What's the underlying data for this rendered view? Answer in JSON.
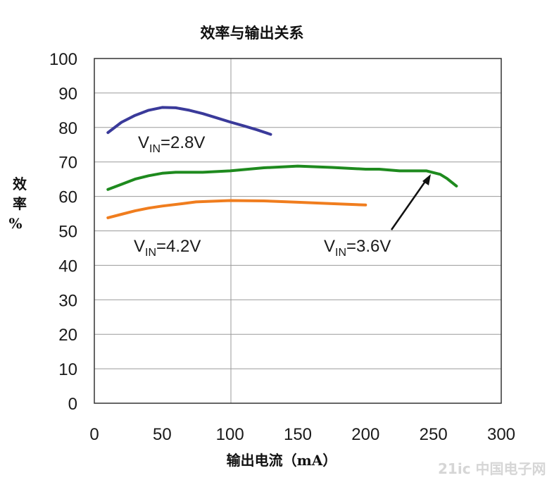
{
  "chart_data": {
    "type": "line",
    "title": "效率与输出关系",
    "xlabel": "输出电流（mA）",
    "ylabel": [
      "效",
      "率",
      "%"
    ],
    "xlim": [
      0,
      300
    ],
    "ylim": [
      0,
      100
    ],
    "xticks": [
      "0",
      "50",
      "100",
      "150",
      "200",
      "250",
      "300"
    ],
    "yticks": [
      "0",
      "10",
      "20",
      "30",
      "40",
      "50",
      "60",
      "70",
      "80",
      "90",
      "100"
    ],
    "grid": "horizontal",
    "series": [
      {
        "name": "VIN=2.8V",
        "color": "#3a3a9a",
        "points": [
          [
            10,
            78.5
          ],
          [
            20,
            81.5
          ],
          [
            30,
            83.5
          ],
          [
            40,
            85
          ],
          [
            50,
            85.8
          ],
          [
            60,
            85.7
          ],
          [
            70,
            85
          ],
          [
            80,
            84
          ],
          [
            90,
            82.8
          ],
          [
            100,
            81.6
          ],
          [
            110,
            80.5
          ],
          [
            120,
            79.3
          ],
          [
            130,
            78
          ]
        ]
      },
      {
        "name": "VIN=3.6V",
        "color": "#1e8a1e",
        "points": [
          [
            10,
            62
          ],
          [
            20,
            63.5
          ],
          [
            30,
            65
          ],
          [
            40,
            66
          ],
          [
            50,
            66.7
          ],
          [
            60,
            67
          ],
          [
            80,
            67
          ],
          [
            100,
            67.4
          ],
          [
            125,
            68.3
          ],
          [
            150,
            68.8
          ],
          [
            175,
            68.4
          ],
          [
            200,
            67.9
          ],
          [
            210,
            67.9
          ],
          [
            225,
            67.4
          ],
          [
            245,
            67.4
          ],
          [
            255,
            66.4
          ],
          [
            260,
            65.2
          ],
          [
            267,
            63
          ]
        ]
      },
      {
        "name": "VIN=4.2V",
        "color": "#f07d1e",
        "points": [
          [
            10,
            53.8
          ],
          [
            20,
            54.8
          ],
          [
            30,
            55.8
          ],
          [
            40,
            56.6
          ],
          [
            50,
            57.2
          ],
          [
            65,
            57.9
          ],
          [
            75,
            58.4
          ],
          [
            100,
            58.8
          ],
          [
            125,
            58.7
          ],
          [
            150,
            58.3
          ],
          [
            175,
            57.9
          ],
          [
            200,
            57.5
          ]
        ]
      }
    ],
    "annotations": [
      {
        "main": "V",
        "sub": "IN",
        "rest": "=2.8V"
      },
      {
        "main": "V",
        "sub": "IN",
        "rest": "=4.2V"
      },
      {
        "main": "V",
        "sub": "IN",
        "rest": "=3.6V"
      }
    ],
    "watermark": "21ic 中国电子网"
  }
}
